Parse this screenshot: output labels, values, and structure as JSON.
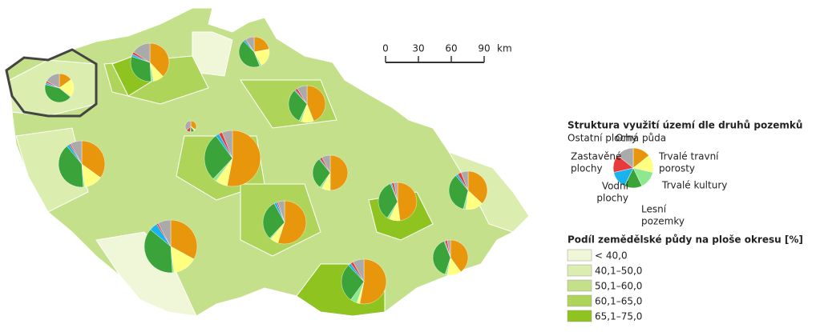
{
  "scale": {
    "ticks": [
      0,
      30,
      60,
      90
    ],
    "unit": "km"
  },
  "land_use": {
    "title": "Struktura využití území dle druhů pozemků",
    "categories": [
      {
        "label": [
          "Orná půda"
        ],
        "color": "#e8960c"
      },
      {
        "label": [
          "Trvalé travní",
          "porosty"
        ],
        "color": "#ffff80"
      },
      {
        "label": [
          "Trvalé kultury"
        ],
        "color": "#8ee88e"
      },
      {
        "label": [
          "Lesní",
          "pozemky"
        ],
        "color": "#3aa33a"
      },
      {
        "label": [
          "Vodní",
          "plochy"
        ],
        "color": "#19b4ef"
      },
      {
        "label": [
          "Zastavěné",
          "plochy"
        ],
        "color": "#e83a3a"
      },
      {
        "label": [
          "Ostatní plochy"
        ],
        "color": "#aaaaaa"
      }
    ],
    "regions": [
      [
        35,
        3,
        2,
        10,
        2,
        11,
        37
      ],
      [
        53,
        7,
        2,
        28,
        2,
        2,
        6
      ],
      [
        33,
        15,
        1,
        37,
        5,
        1,
        8
      ],
      [
        35,
        13,
        1,
        40,
        2,
        1,
        8
      ],
      [
        15,
        20,
        1,
        43,
        2,
        2,
        17
      ],
      [
        38,
        9,
        2,
        31,
        2,
        2,
        16
      ],
      [
        22,
        20,
        2,
        44,
        2,
        1,
        9
      ],
      [
        44,
        11,
        2,
        31,
        1,
        2,
        9
      ],
      [
        50,
        8,
        2,
        29,
        1,
        2,
        8
      ],
      [
        55,
        6,
        1,
        30,
        2,
        1,
        5
      ],
      [
        53,
        2,
        5,
        28,
        2,
        2,
        8
      ],
      [
        48,
        9,
        2,
        35,
        1,
        2,
        3
      ],
      [
        37,
        15,
        2,
        35,
        2,
        3,
        6
      ],
      [
        40,
        13,
        2,
        39,
        1,
        2,
        3
      ]
    ]
  },
  "share": {
    "title": "Podíl zemědělské půdy na ploše okresu [%]",
    "classes": [
      {
        "label": "< 40,0",
        "color": "#f0f7d8"
      },
      {
        "label": "40,1–50,0",
        "color": "#dcedb0"
      },
      {
        "label": "50,1–60,0",
        "color": "#c5e08a"
      },
      {
        "label": "60,1–65,0",
        "color": "#afd45a"
      },
      {
        "label": "65,1–75,0",
        "color": "#8fc31f"
      }
    ]
  }
}
